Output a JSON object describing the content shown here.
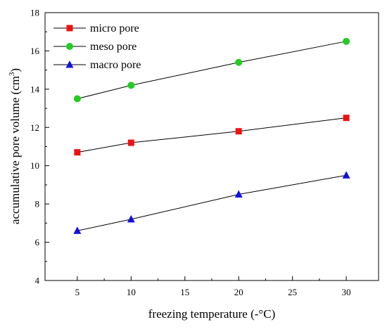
{
  "chart_data": {
    "type": "line",
    "xlabel": "freezing temperature (-°C)",
    "ylabel_main": "accumulative pore volume (cm",
    "ylabel_sup": "3",
    "ylabel_close": ")",
    "xlim": [
      2,
      33
    ],
    "ylim": [
      4,
      18
    ],
    "xticks": [
      5,
      10,
      15,
      20,
      25,
      30
    ],
    "yticks": [
      4,
      6,
      8,
      10,
      12,
      14,
      16,
      18
    ],
    "x": [
      5,
      10,
      20,
      30
    ],
    "grid": false,
    "legend_position": "top-left",
    "series": [
      {
        "name": "micro pore",
        "values": [
          10.7,
          11.2,
          11.8,
          12.5
        ],
        "marker": "square",
        "color": "#ee1111"
      },
      {
        "name": "meso pore",
        "values": [
          13.5,
          14.2,
          15.4,
          16.5
        ],
        "marker": "circle",
        "color": "#22cc22"
      },
      {
        "name": "macro pore",
        "values": [
          6.6,
          7.2,
          8.5,
          9.5
        ],
        "marker": "triangle",
        "color": "#1111dd"
      }
    ]
  }
}
